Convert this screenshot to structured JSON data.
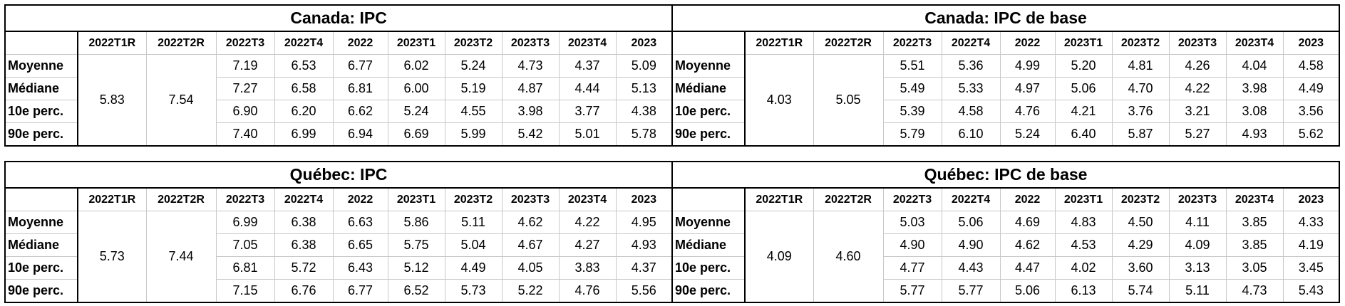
{
  "tables": [
    {
      "title": "Canada: IPC",
      "columns": [
        "2022T1R",
        "2022T2R",
        "2022T3",
        "2022T4",
        "2022",
        "2023T1",
        "2023T2",
        "2023T3",
        "2023T4",
        "2023"
      ],
      "merged": [
        "5.83",
        "7.54"
      ],
      "rows": [
        {
          "label": "Moyenne",
          "values": [
            "7.19",
            "6.53",
            "6.77",
            "6.02",
            "5.24",
            "4.73",
            "4.37",
            "5.09"
          ]
        },
        {
          "label": "Médiane",
          "values": [
            "7.27",
            "6.58",
            "6.81",
            "6.00",
            "5.19",
            "4.87",
            "4.44",
            "5.13"
          ]
        },
        {
          "label": "10e perc.",
          "values": [
            "6.90",
            "6.20",
            "6.62",
            "5.24",
            "4.55",
            "3.98",
            "3.77",
            "4.38"
          ]
        },
        {
          "label": "90e perc.",
          "values": [
            "7.40",
            "6.99",
            "6.94",
            "6.69",
            "5.99",
            "5.42",
            "5.01",
            "5.78"
          ]
        }
      ]
    },
    {
      "title": "Canada: IPC de base",
      "columns": [
        "2022T1R",
        "2022T2R",
        "2022T3",
        "2022T4",
        "2022",
        "2023T1",
        "2023T2",
        "2023T3",
        "2023T4",
        "2023"
      ],
      "merged": [
        "4.03",
        "5.05"
      ],
      "rows": [
        {
          "label": "Moyenne",
          "values": [
            "5.51",
            "5.36",
            "4.99",
            "5.20",
            "4.81",
            "4.26",
            "4.04",
            "4.58"
          ]
        },
        {
          "label": "Médiane",
          "values": [
            "5.49",
            "5.33",
            "4.97",
            "5.06",
            "4.70",
            "4.22",
            "3.98",
            "4.49"
          ]
        },
        {
          "label": "10e perc.",
          "values": [
            "5.39",
            "4.58",
            "4.76",
            "4.21",
            "3.76",
            "3.21",
            "3.08",
            "3.56"
          ]
        },
        {
          "label": "90e perc.",
          "values": [
            "5.79",
            "6.10",
            "5.24",
            "6.40",
            "5.87",
            "5.27",
            "4.93",
            "5.62"
          ]
        }
      ]
    },
    {
      "title": "Québec: IPC",
      "columns": [
        "2022T1R",
        "2022T2R",
        "2022T3",
        "2022T4",
        "2022",
        "2023T1",
        "2023T2",
        "2023T3",
        "2023T4",
        "2023"
      ],
      "merged": [
        "5.73",
        "7.44"
      ],
      "rows": [
        {
          "label": "Moyenne",
          "values": [
            "6.99",
            "6.38",
            "6.63",
            "5.86",
            "5.11",
            "4.62",
            "4.22",
            "4.95"
          ]
        },
        {
          "label": "Médiane",
          "values": [
            "7.05",
            "6.38",
            "6.65",
            "5.75",
            "5.04",
            "4.67",
            "4.27",
            "4.93"
          ]
        },
        {
          "label": "10e perc.",
          "values": [
            "6.81",
            "5.72",
            "6.43",
            "5.12",
            "4.49",
            "4.05",
            "3.83",
            "4.37"
          ]
        },
        {
          "label": "90e perc.",
          "values": [
            "7.15",
            "6.76",
            "6.77",
            "6.52",
            "5.73",
            "5.22",
            "4.76",
            "5.56"
          ]
        }
      ]
    },
    {
      "title": "Québec: IPC de base",
      "columns": [
        "2022T1R",
        "2022T2R",
        "2022T3",
        "2022T4",
        "2022",
        "2023T1",
        "2023T2",
        "2023T3",
        "2023T4",
        "2023"
      ],
      "merged": [
        "4.09",
        "4.60"
      ],
      "rows": [
        {
          "label": "Moyenne",
          "values": [
            "5.03",
            "5.06",
            "4.69",
            "4.83",
            "4.50",
            "4.11",
            "3.85",
            "4.33"
          ]
        },
        {
          "label": "Médiane",
          "values": [
            "4.90",
            "4.90",
            "4.62",
            "4.53",
            "4.29",
            "4.09",
            "3.85",
            "4.19"
          ]
        },
        {
          "label": "10e perc.",
          "values": [
            "4.77",
            "4.43",
            "4.47",
            "4.02",
            "3.60",
            "3.13",
            "3.05",
            "3.45"
          ]
        },
        {
          "label": "90e perc.",
          "values": [
            "5.77",
            "5.77",
            "5.06",
            "6.13",
            "5.74",
            "5.11",
            "4.73",
            "5.43"
          ]
        }
      ]
    }
  ]
}
